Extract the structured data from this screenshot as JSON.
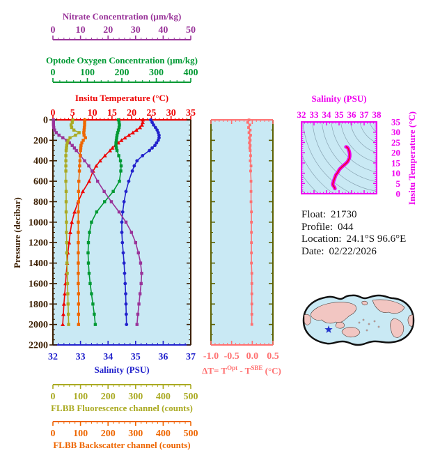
{
  "colors": {
    "nitrate": "#993399",
    "oxygen": "#009933",
    "temperature": "#EE0000",
    "salinity": "#2222CC",
    "fluorescence": "#AAAA22",
    "backscatter": "#EE6600",
    "pressure": "#3B1E00",
    "delta_t": "#FF7070",
    "ts_magenta": "#EE00EE",
    "ts_core": "#EE1111",
    "plot_bg": "#C9E9F4",
    "contour_gray": "#7E99A8",
    "map_land": "#F2C6C2",
    "map_ocean": "#C9E9F4",
    "map_outline": "#111111",
    "star_blue": "#2233CC",
    "info_text": "#111111"
  },
  "axes": {
    "nitrate": {
      "title": "Nitrate Concentration (μm/kg)",
      "min": 0,
      "max": 50,
      "major": 10,
      "minor": 2,
      "labels": [
        "0",
        "10",
        "20",
        "30",
        "40",
        "50"
      ]
    },
    "oxygen": {
      "title": "Optode Oxygen Concentration (μm/kg)",
      "min": 0,
      "max": 400,
      "major": 100,
      "minor": 20,
      "labels": [
        "0",
        "100",
        "200",
        "300",
        "400"
      ]
    },
    "temperature": {
      "title": "Insitu Temperature (°C)",
      "min": 0,
      "max": 35,
      "major": 5,
      "minor": 1,
      "labels": [
        "0",
        "5",
        "10",
        "15",
        "20",
        "25",
        "30",
        "35"
      ]
    },
    "salinity": {
      "title": "Salinity (PSU)",
      "min": 32,
      "max": 37,
      "major": 1,
      "minor": 0.2,
      "labels": [
        "32",
        "33",
        "34",
        "35",
        "36",
        "37"
      ]
    },
    "fluorescence": {
      "title": "FLBB Fluorescence channel (counts)",
      "min": 0,
      "max": 500,
      "major": 100,
      "minor": 20,
      "labels": [
        "0",
        "100",
        "200",
        "300",
        "400",
        "500"
      ]
    },
    "backscatter": {
      "title": "FLBB Backscatter channel (counts)",
      "min": 0,
      "max": 500,
      "major": 100,
      "minor": 20,
      "labels": [
        "0",
        "100",
        "200",
        "300",
        "400",
        "500"
      ]
    },
    "pressure": {
      "title": "Pressure (decibar)",
      "min": 0,
      "max": 2200,
      "major": 200,
      "minor": 50,
      "labels": [
        "0",
        "200",
        "400",
        "600",
        "800",
        "1000",
        "1200",
        "1400",
        "1600",
        "1800",
        "2000",
        "2200"
      ]
    },
    "delta_t": {
      "title_prefix": "ΔT= T",
      "title_sup1": "Opt",
      "title_mid": " - T",
      "title_sup2": "SBE",
      "title_suffix": " (°C)",
      "min": -1.0,
      "max": 0.5,
      "major": 0.5,
      "minor": 0.1,
      "labels": [
        "-1.0",
        "-0.5",
        "0.0",
        "0.5"
      ]
    },
    "ts_salinity": {
      "title": "Salinity (PSU)",
      "min": 32,
      "max": 38,
      "major": 1,
      "minor": 0.25,
      "labels": [
        "32",
        "33",
        "34",
        "35",
        "36",
        "37",
        "38"
      ]
    },
    "ts_temperature": {
      "title": "Insitu Temperature (°C)",
      "min": 0,
      "max": 35,
      "major": 5,
      "minor": 1,
      "labels": [
        "0",
        "5",
        "10",
        "15",
        "20",
        "25",
        "30",
        "35"
      ]
    }
  },
  "info": {
    "rows": [
      {
        "label": "Float:",
        "value": "21730"
      },
      {
        "label": "Profile:",
        "value": "044"
      },
      {
        "label": "Location:",
        "value": "24.1°S  96.6°E"
      },
      {
        "label": "Date:",
        "value": "02/22/2026"
      }
    ]
  },
  "chart_data": {
    "type": "line",
    "description": "Ocean float profile plot: six profile series vs pressure (each with its own x-axis), a temperature-difference panel, and a T-S diagram with isopycnal contours.",
    "pressure_db": [
      0,
      25,
      50,
      75,
      100,
      125,
      150,
      175,
      200,
      225,
      250,
      275,
      300,
      350,
      400,
      450,
      500,
      600,
      700,
      800,
      900,
      1000,
      1100,
      1200,
      1300,
      1400,
      1500,
      1600,
      1700,
      1800,
      1900,
      2000
    ],
    "series": [
      {
        "name": "Insitu Temperature (°C)",
        "axis": "temperature",
        "marker": "triangle",
        "values": [
          22.8,
          22.8,
          22.6,
          22.1,
          21.2,
          20.3,
          19.3,
          18.3,
          17.4,
          16.6,
          15.8,
          15.1,
          14.5,
          13.2,
          12.0,
          11.0,
          10.2,
          9.2,
          7.6,
          6.4,
          5.5,
          4.8,
          4.4,
          4.1,
          3.8,
          3.6,
          3.4,
          3.2,
          3.0,
          2.8,
          2.65,
          2.5
        ]
      },
      {
        "name": "Salinity (PSU)",
        "axis": "salinity",
        "marker": "circle",
        "values": [
          35.55,
          35.6,
          35.65,
          35.72,
          35.78,
          35.82,
          35.85,
          35.85,
          35.82,
          35.76,
          35.7,
          35.6,
          35.5,
          35.25,
          35.05,
          34.95,
          34.88,
          34.75,
          34.65,
          34.58,
          34.53,
          34.5,
          34.5,
          34.52,
          34.55,
          34.58,
          34.6,
          34.62,
          34.64,
          34.65,
          34.66,
          34.67
        ]
      },
      {
        "name": "Optode Oxygen Concentration (μm/kg)",
        "axis": "oxygen",
        "marker": "square",
        "values": [
          190,
          192,
          193,
          192,
          190,
          188,
          186,
          185,
          184,
          183,
          183,
          184,
          186,
          191,
          196,
          198,
          197,
          193,
          175,
          150,
          127,
          112,
          106,
          103,
          102,
          103,
          105,
          108,
          112,
          116,
          120,
          123
        ]
      },
      {
        "name": "Nitrate Concentration (μm/kg)",
        "axis": "nitrate",
        "marker": "square",
        "values": [
          0.2,
          0.2,
          0.2,
          0.3,
          0.6,
          1.2,
          2.2,
          3.6,
          5.0,
          6.0,
          7.0,
          7.8,
          8.5,
          10.0,
          11.5,
          13.0,
          14.2,
          16.2,
          18.6,
          21.2,
          24.0,
          26.5,
          28.5,
          30.0,
          31.0,
          31.8,
          32.2,
          32.0,
          31.6,
          31.2,
          30.8,
          30.5
        ]
      },
      {
        "name": "FLBB Fluorescence channel (counts)",
        "axis": "fluorescence",
        "marker": "square",
        "values": [
          72,
          70,
          66,
          68,
          76,
          95,
          82,
          62,
          55,
          52,
          50,
          49,
          48,
          47,
          47,
          47,
          47,
          47,
          48,
          48,
          48,
          49,
          49,
          50,
          50,
          51,
          52,
          53,
          54,
          55,
          56,
          57
        ]
      },
      {
        "name": "FLBB Backscatter channel (counts)",
        "axis": "backscatter",
        "marker": "square",
        "values": [
          116,
          115,
          115,
          114,
          113,
          112,
          113,
          118,
          110,
          105,
          102,
          101,
          100,
          99,
          98,
          97,
          96,
          94,
          93,
          93,
          92,
          92,
          92,
          92,
          92,
          92,
          92,
          92,
          93,
          93,
          93,
          93
        ]
      }
    ],
    "delta_t_panel": {
      "xlabel_ticks": [
        -1.0,
        -0.5,
        0.0,
        0.5
      ],
      "values": [
        -0.08,
        -0.11,
        -0.06,
        -0.09,
        -0.05,
        -0.08,
        -0.04,
        -0.07,
        -0.05,
        -0.07,
        -0.05,
        -0.06,
        -0.05,
        -0.04,
        -0.05,
        -0.03,
        -0.04,
        -0.03,
        -0.03,
        -0.03,
        -0.02,
        -0.02,
        -0.02,
        -0.02,
        -0.02,
        -0.02,
        -0.01,
        -0.01,
        -0.01,
        -0.01,
        -0.01,
        -0.01
      ]
    },
    "ts_diagram": {
      "note": "T-S curve built from salinity+temperature pairs of the profile; gray arcs are density contours",
      "salinity_range": [
        32,
        38
      ],
      "temperature_range": [
        0,
        35
      ]
    },
    "map": {
      "float_position_deg": {
        "lat": -24.1,
        "lon": 96.6
      }
    }
  }
}
